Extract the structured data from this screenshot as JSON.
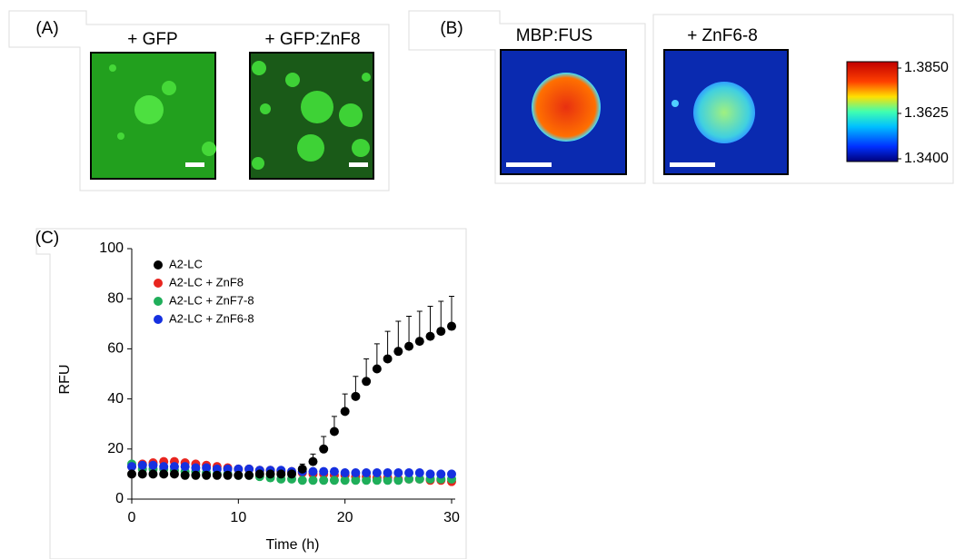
{
  "panel_a": {
    "label": "(A)",
    "titles": [
      "+ GFP",
      "+ GFP:ZnF8"
    ]
  },
  "panel_b": {
    "label": "(B)",
    "titles": [
      "MBP:FUS",
      "+ ZnF6-8"
    ],
    "colorbar": {
      "lim": [
        1.34,
        1.385
      ],
      "ticks": [
        {
          "value": 1.385,
          "label": "1.3850"
        },
        {
          "value": 1.3625,
          "label": "1.3625"
        },
        {
          "value": 1.34,
          "label": "1.3400"
        }
      ]
    }
  },
  "panel_c": {
    "label": "(C)"
  },
  "chart_data": {
    "type": "scatter",
    "xlabel": "Time (h)",
    "ylabel": "RFU",
    "x": [
      0,
      1,
      2,
      3,
      4,
      5,
      6,
      7,
      8,
      9,
      10,
      11,
      12,
      13,
      14,
      15,
      16,
      17,
      18,
      19,
      20,
      21,
      22,
      23,
      24,
      25,
      26,
      27,
      28,
      29,
      30
    ],
    "xlim": [
      0,
      30
    ],
    "xticks": [
      0,
      10,
      20,
      30
    ],
    "ylim": [
      0,
      100
    ],
    "yticks": [
      0,
      20,
      40,
      60,
      80,
      100
    ],
    "series": [
      {
        "name": "A2-LC",
        "color": "#000000",
        "values": [
          10,
          10,
          10,
          10,
          10,
          9.5,
          9.5,
          9.5,
          9.5,
          9.5,
          9.5,
          9.5,
          10,
          10,
          10,
          10,
          12,
          15,
          20,
          27,
          35,
          41,
          47,
          52,
          56,
          59,
          61,
          63,
          65,
          67,
          69
        ],
        "errors": [
          1,
          1,
          1,
          1,
          1,
          1,
          1,
          1,
          1,
          1,
          1,
          1,
          1,
          1,
          1,
          1,
          2,
          3,
          5,
          6,
          7,
          8,
          9,
          10,
          11,
          12,
          12,
          12,
          12,
          12,
          12
        ]
      },
      {
        "name": "A2-LC + ZnF8",
        "color": "#e8251f",
        "values": [
          13,
          14,
          14.5,
          15,
          15,
          14.5,
          14,
          13.5,
          13,
          12.5,
          12,
          12,
          11.5,
          11.5,
          11,
          11,
          10.5,
          10,
          10,
          9.5,
          9.5,
          9,
          9,
          8.5,
          8.5,
          8,
          8,
          8,
          7.5,
          7.5,
          7
        ]
      },
      {
        "name": "A2-LC + ZnF7-8",
        "color": "#1fae5a",
        "values": [
          14,
          12,
          12,
          12,
          11.5,
          11,
          11,
          10.5,
          10,
          10,
          9.5,
          9.5,
          9,
          8.5,
          8,
          8,
          7.5,
          7.5,
          7.5,
          7.5,
          7.5,
          7.5,
          7.5,
          7.5,
          7.5,
          7.5,
          8,
          8,
          8,
          8,
          8
        ]
      },
      {
        "name": "A2-LC + ZnF6-8",
        "color": "#1530e0",
        "values": [
          13,
          13.5,
          13.5,
          13,
          13,
          13,
          12.5,
          12.5,
          12,
          12,
          12,
          12,
          11.5,
          11.5,
          11.5,
          11,
          11,
          11,
          11,
          11,
          10.5,
          10.5,
          10.5,
          10.5,
          10.5,
          10.5,
          10.5,
          10.5,
          10,
          10,
          10
        ]
      }
    ]
  }
}
